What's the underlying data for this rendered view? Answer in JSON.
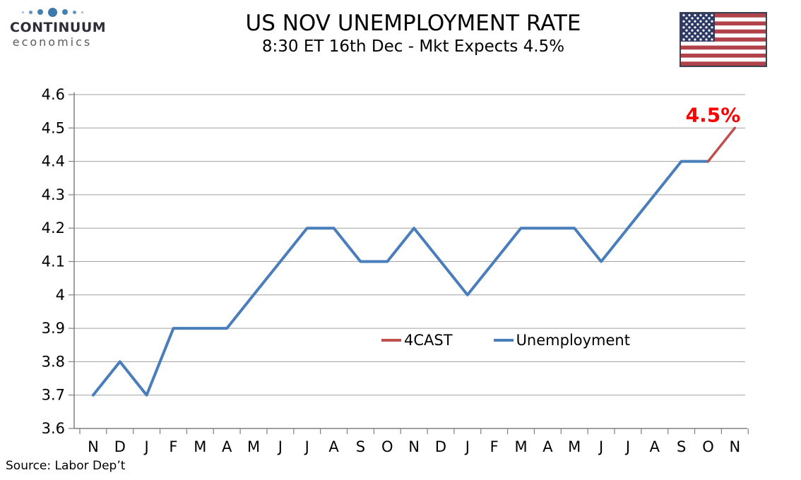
{
  "header": {
    "logo": {
      "line1": "CONTINUUM",
      "line2": "economics"
    }
  },
  "chart_data": {
    "type": "line",
    "title": "US NOV UNEMPLOYMENT RATE",
    "subtitle": "8:30 ET 16th Dec - Mkt Expects 4.5%",
    "source": "Source: Labor Dep’t",
    "x_tick_labels": [
      "N",
      "D",
      "J",
      "F",
      "M",
      "A",
      "M",
      "J",
      "J",
      "A",
      "S",
      "O",
      "N",
      "D",
      "J",
      "F",
      "M",
      "A",
      "M",
      "J",
      "J",
      "A",
      "S",
      "O",
      "N"
    ],
    "ylim": [
      3.6,
      4.6
    ],
    "y_ticks": [
      3.6,
      3.7,
      3.8,
      3.9,
      4.0,
      4.1,
      4.2,
      4.3,
      4.4,
      4.5,
      4.6
    ],
    "y_tick_labels": [
      "3.6",
      "3.7",
      "3.8",
      "3.9",
      "4",
      "4.1",
      "4.2",
      "4.3",
      "4.4",
      "4.5",
      "4.6"
    ],
    "grid": true,
    "legend": [
      "4CAST",
      "Unemployment"
    ],
    "legend_position": "inside-lower-center",
    "series": [
      {
        "name": "4CAST",
        "color": "#c0504d",
        "values": [
          null,
          null,
          null,
          null,
          null,
          null,
          null,
          null,
          null,
          null,
          null,
          null,
          null,
          null,
          null,
          null,
          null,
          null,
          null,
          null,
          null,
          null,
          null,
          4.4,
          4.5
        ]
      },
      {
        "name": "Unemployment",
        "color": "#4a7ebb",
        "values": [
          3.7,
          3.8,
          3.7,
          3.9,
          3.9,
          3.9,
          4.0,
          4.1,
          4.2,
          4.2,
          4.1,
          4.1,
          4.2,
          4.1,
          4.0,
          4.1,
          4.2,
          4.2,
          4.2,
          4.1,
          4.2,
          4.3,
          4.4,
          4.4,
          null
        ]
      }
    ],
    "annotation": {
      "text": "4.5%",
      "color": "#ff0000",
      "x_index": 24,
      "value": 4.5
    },
    "axis_color": "#808080",
    "grid_color": "#a0a0a0"
  }
}
